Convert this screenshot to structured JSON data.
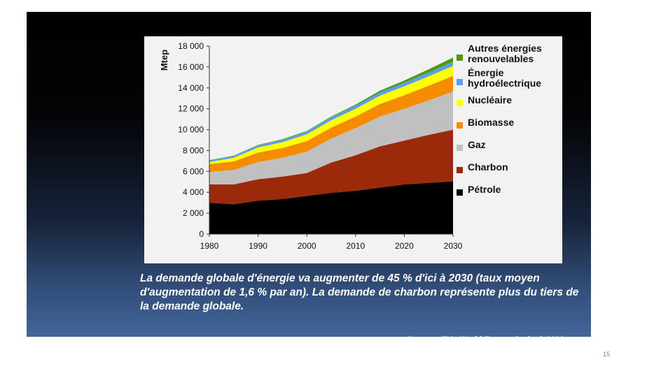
{
  "slide": {
    "caption": "La demande globale d'énergie va augmenter de 45 % d'ici à 2030 (taux moyen d'augmentation de 1,6 % par an). La demande de charbon représente plus du tiers de la demande globale.",
    "source": "Source : EIA, World Energy Outlook 2008",
    "page_number": "15",
    "background_colors": [
      "#000000",
      "#43659a"
    ]
  },
  "chart_data": {
    "type": "area",
    "stacked": true,
    "ylabel": "Mtep",
    "xlabel": "",
    "x": [
      1980,
      1985,
      1990,
      1995,
      2000,
      2005,
      2010,
      2015,
      2020,
      2025,
      2030
    ],
    "xticks": [
      "1980",
      "1990",
      "2000",
      "2010",
      "2020",
      "2030"
    ],
    "yticks": [
      "0",
      "2 000",
      "4 000",
      "6 000",
      "8 000",
      "10 000",
      "12 000",
      "14 000",
      "16 000",
      "18 000"
    ],
    "ylim": [
      0,
      18000
    ],
    "xlim": [
      1980,
      2030
    ],
    "legend_position": "right",
    "series": [
      {
        "name": "Pétrole",
        "color": "#000000",
        "values": [
          3000,
          2850,
          3200,
          3350,
          3650,
          3950,
          4150,
          4450,
          4750,
          4900,
          5050
        ]
      },
      {
        "name": "Charbon",
        "color": "#9b2a0a",
        "values": [
          1750,
          1900,
          2050,
          2150,
          2200,
          2900,
          3400,
          3950,
          4200,
          4600,
          4950
        ]
      },
      {
        "name": "Gaz",
        "color": "#c0c0c0",
        "values": [
          1200,
          1400,
          1650,
          1800,
          2050,
          2300,
          2600,
          2850,
          3050,
          3300,
          3650
        ]
      },
      {
        "name": "Biomasse",
        "color": "#f58b00",
        "values": [
          750,
          800,
          900,
          950,
          1000,
          1050,
          1100,
          1200,
          1300,
          1400,
          1500
        ]
      },
      {
        "name": "Nucléaire",
        "color": "#ffff00",
        "values": [
          200,
          350,
          500,
          550,
          650,
          700,
          750,
          800,
          850,
          900,
          950
        ]
      },
      {
        "name": "Énergie hydroélectrique",
        "color": "#5aa0e8",
        "values": [
          150,
          180,
          200,
          230,
          260,
          280,
          300,
          330,
          350,
          380,
          400
        ]
      },
      {
        "name": "Autres énergies renouvelables",
        "color": "#4e9a06",
        "values": [
          20,
          30,
          40,
          50,
          60,
          70,
          100,
          150,
          200,
          300,
          400
        ]
      }
    ],
    "legend": [
      {
        "lines": [
          "Autres énergies",
          "renouvelables"
        ],
        "color": "#4e9a06"
      },
      {
        "lines": [
          "Énergie",
          "hydroélectrique"
        ],
        "color": "#5aa0e8"
      },
      {
        "lines": [
          "Nucléaire"
        ],
        "color": "#ffff00"
      },
      {
        "lines": [
          "Biomasse"
        ],
        "color": "#f58b00"
      },
      {
        "lines": [
          "Gaz"
        ],
        "color": "#c0c0c0"
      },
      {
        "lines": [
          "Charbon"
        ],
        "color": "#9b2a0a"
      },
      {
        "lines": [
          "Pétrole"
        ],
        "color": "#000000"
      }
    ]
  }
}
